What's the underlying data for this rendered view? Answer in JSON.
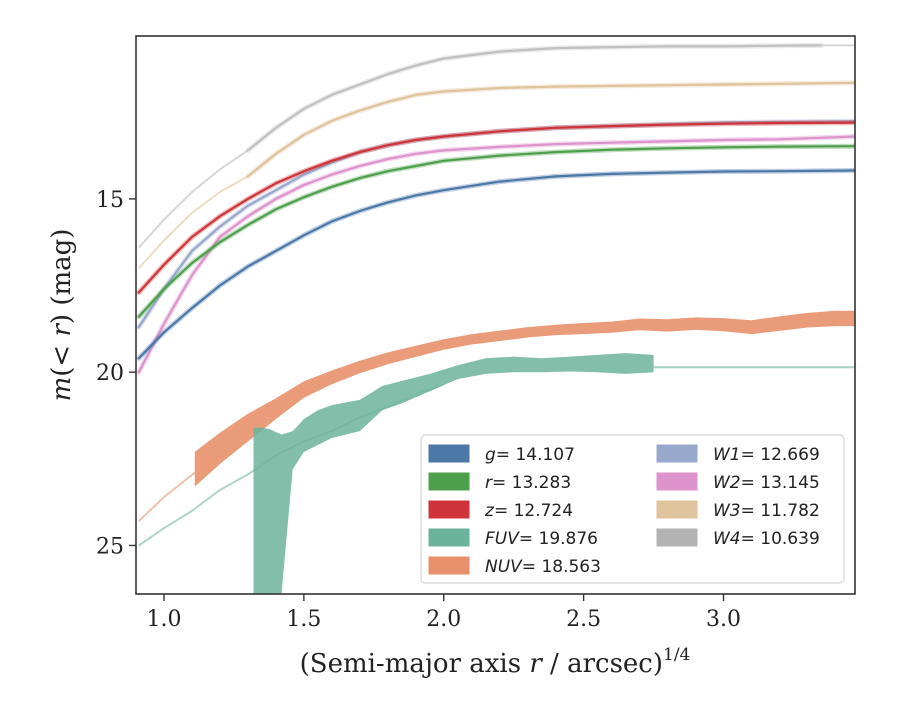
{
  "chart_data": {
    "type": "line",
    "xlabel": "(Semi-major axis r / arcsec)^1/4",
    "xlabel_parts": {
      "lead": "(Semi-major axis ",
      "var": "r",
      "mid": " / arcsec)",
      "sup": "1/4"
    },
    "ylabel": "m(< r) (mag)",
    "ylabel_parts": {
      "var": "m",
      "mid": "(< ",
      "var2": "r",
      "tail": ") (mag)"
    },
    "xlim": [
      0.9,
      3.47
    ],
    "ylim": [
      26.4,
      10.3
    ],
    "y_inverted": true,
    "xticks": [
      1.0,
      1.5,
      2.0,
      2.5,
      3.0
    ],
    "xtick_labels": [
      "1.0",
      "1.5",
      "2.0",
      "2.5",
      "3.0"
    ],
    "yticks": [
      15,
      20,
      25
    ],
    "ytick_labels": [
      "15",
      "20",
      "25"
    ],
    "grid": false,
    "legend_position": "lower-right",
    "legend": [
      {
        "key": "g",
        "label_var": "g",
        "label_value": "= 14.107",
        "color": "#4c78a8",
        "column": 0
      },
      {
        "key": "r",
        "label_var": "r",
        "label_value": "= 13.283",
        "color": "#4e9f4b",
        "column": 0
      },
      {
        "key": "z",
        "label_var": "z",
        "label_value": "= 12.724",
        "color": "#cf343a",
        "column": 0
      },
      {
        "key": "FUV",
        "label_var": "FUV",
        "label_value": "= 19.876",
        "color": "#6cb39b",
        "column": 0
      },
      {
        "key": "NUV",
        "label_var": "NUV",
        "label_value": "= 18.563",
        "color": "#e8906b",
        "column": 0
      },
      {
        "key": "W1",
        "label_var": "W1",
        "label_value": "= 12.669",
        "color": "#98a8cc",
        "column": 1
      },
      {
        "key": "W2",
        "label_var": "W2",
        "label_value": "= 13.145",
        "color": "#dd93cb",
        "column": 1
      },
      {
        "key": "W3",
        "label_var": "W3",
        "label_value": "= 11.782",
        "color": "#dfc39c",
        "column": 1
      },
      {
        "key": "W4",
        "label_var": "W4",
        "label_value": "= 10.639",
        "color": "#b3b3b3",
        "column": 1
      }
    ],
    "series": [
      {
        "key": "W4",
        "color": "#c0c0c0",
        "width": 0.8,
        "ext_color": "#d6d6d6",
        "x": [
          1.3,
          1.4,
          1.5,
          1.6,
          1.7,
          1.8,
          1.9,
          2.0,
          2.2,
          2.4,
          2.6,
          2.8,
          3.0,
          3.2,
          3.35
        ],
        "y": [
          13.6,
          12.95,
          12.4,
          12.0,
          11.7,
          11.4,
          11.15,
          10.95,
          10.75,
          10.65,
          10.62,
          10.6,
          10.6,
          10.58,
          10.57
        ],
        "ext_x": [
          0.91,
          1.0,
          1.1,
          1.2,
          1.3
        ],
        "ext_y": [
          16.4,
          15.6,
          14.8,
          14.15,
          13.6
        ],
        "tail_x": [
          3.35,
          3.47
        ],
        "tail_y": [
          10.57,
          10.57
        ]
      },
      {
        "key": "W3",
        "color": "#dfc39c",
        "width": 0.7,
        "ext_color": "#ecdcc2",
        "x": [
          1.3,
          1.4,
          1.5,
          1.6,
          1.7,
          1.8,
          1.9,
          2.0,
          2.2,
          2.4,
          2.6,
          2.8,
          3.0,
          3.2,
          3.47
        ],
        "y": [
          14.35,
          13.7,
          13.15,
          12.75,
          12.45,
          12.2,
          12.0,
          11.9,
          11.8,
          11.76,
          11.74,
          11.72,
          11.7,
          11.68,
          11.65
        ],
        "ext_x": [
          0.91,
          1.0,
          1.1,
          1.2,
          1.3
        ],
        "ext_y": [
          17.0,
          16.2,
          15.4,
          14.8,
          14.35
        ]
      },
      {
        "key": "W1",
        "color": "#98a8cc",
        "width": 0.6,
        "x": [
          0.91,
          1.0,
          1.1,
          1.2,
          1.3,
          1.4,
          1.5,
          1.6,
          1.7,
          1.8,
          1.9,
          2.0,
          2.2,
          2.4,
          2.6,
          2.8,
          3.0,
          3.2,
          3.47
        ],
        "y": [
          18.7,
          17.6,
          16.5,
          15.8,
          15.2,
          14.75,
          14.3,
          13.95,
          13.65,
          13.45,
          13.3,
          13.2,
          13.05,
          12.95,
          12.9,
          12.85,
          12.8,
          12.78,
          12.76
        ]
      },
      {
        "key": "z",
        "color": "#cf343a",
        "width": 0.45,
        "x": [
          0.91,
          1.0,
          1.1,
          1.2,
          1.3,
          1.4,
          1.5,
          1.6,
          1.7,
          1.8,
          1.9,
          2.0,
          2.2,
          2.4,
          2.6,
          2.8,
          3.0,
          3.2,
          3.47
        ],
        "y": [
          17.7,
          16.9,
          16.1,
          15.5,
          15.0,
          14.55,
          14.2,
          13.9,
          13.65,
          13.45,
          13.3,
          13.2,
          13.05,
          12.95,
          12.9,
          12.86,
          12.83,
          12.81,
          12.8
        ]
      },
      {
        "key": "W2",
        "color": "#dd93cb",
        "width": 0.55,
        "x": [
          0.91,
          1.0,
          1.1,
          1.2,
          1.3,
          1.4,
          1.5,
          1.6,
          1.7,
          1.8,
          1.9,
          2.0,
          2.2,
          2.4,
          2.6,
          2.8,
          3.0,
          3.2,
          3.47
        ],
        "y": [
          20.0,
          18.6,
          17.2,
          16.1,
          15.5,
          15.0,
          14.6,
          14.3,
          14.05,
          13.85,
          13.7,
          13.6,
          13.5,
          13.42,
          13.38,
          13.34,
          13.3,
          13.28,
          13.2
        ]
      },
      {
        "key": "r",
        "color": "#4e9f4b",
        "width": 0.45,
        "x": [
          0.91,
          1.0,
          1.1,
          1.2,
          1.3,
          1.4,
          1.5,
          1.6,
          1.7,
          1.8,
          1.9,
          2.0,
          2.2,
          2.4,
          2.6,
          2.8,
          3.0,
          3.2,
          3.47
        ],
        "y": [
          18.4,
          17.6,
          16.85,
          16.25,
          15.75,
          15.3,
          14.95,
          14.65,
          14.4,
          14.2,
          14.05,
          13.9,
          13.75,
          13.65,
          13.58,
          13.54,
          13.51,
          13.49,
          13.48
        ]
      },
      {
        "key": "g",
        "color": "#4c78a8",
        "width": 0.45,
        "x": [
          0.91,
          1.0,
          1.1,
          1.2,
          1.3,
          1.4,
          1.5,
          1.6,
          1.7,
          1.8,
          1.9,
          2.0,
          2.2,
          2.4,
          2.6,
          2.8,
          3.0,
          3.2,
          3.47
        ],
        "y": [
          19.6,
          18.85,
          18.15,
          17.5,
          16.95,
          16.5,
          16.05,
          15.65,
          15.35,
          15.1,
          14.9,
          14.75,
          14.5,
          14.35,
          14.28,
          14.24,
          14.21,
          14.2,
          14.18
        ]
      },
      {
        "key": "NUV",
        "color": "#e8906b",
        "width": 0,
        "x": [
          1.11,
          1.2,
          1.3,
          1.4,
          1.5,
          1.6,
          1.7,
          1.8,
          1.9,
          2.0,
          2.1,
          2.2,
          2.3,
          2.4,
          2.5,
          2.6,
          2.7,
          2.8,
          2.9,
          3.0,
          3.1,
          3.2,
          3.3,
          3.4,
          3.47
        ],
        "y": [
          22.8,
          22.2,
          21.6,
          21.05,
          20.5,
          20.15,
          19.85,
          19.6,
          19.4,
          19.2,
          19.05,
          18.95,
          18.85,
          18.78,
          18.74,
          18.7,
          18.62,
          18.65,
          18.6,
          18.63,
          18.7,
          18.6,
          18.5,
          18.45,
          18.45
        ],
        "yerr": [
          0.5,
          0.45,
          0.4,
          0.3,
          0.24,
          0.2,
          0.18,
          0.17,
          0.16,
          0.15,
          0.15,
          0.15,
          0.15,
          0.15,
          0.16,
          0.16,
          0.17,
          0.18,
          0.18,
          0.19,
          0.2,
          0.21,
          0.21,
          0.22,
          0.22
        ],
        "ext_x": [
          0.91,
          1.0,
          1.11
        ],
        "ext_y": [
          24.3,
          23.6,
          22.9
        ]
      },
      {
        "key": "FUV",
        "color": "#6cb39b",
        "width": 0,
        "x": [
          1.32,
          1.35,
          1.38,
          1.42,
          1.46,
          1.5,
          1.55,
          1.6,
          1.7,
          1.78,
          1.85,
          1.95,
          2.05,
          2.15,
          2.25,
          2.35,
          2.45,
          2.55,
          2.65,
          2.75
        ],
        "y_upper": [
          21.6,
          21.6,
          21.65,
          21.8,
          21.7,
          21.35,
          21.1,
          20.95,
          20.8,
          20.4,
          20.25,
          20.05,
          19.8,
          19.6,
          19.55,
          19.6,
          19.55,
          19.5,
          19.45,
          19.5
        ],
        "y_lower": [
          26.4,
          26.4,
          26.4,
          26.4,
          22.8,
          22.3,
          22.1,
          21.9,
          21.7,
          21.1,
          20.9,
          20.55,
          20.2,
          20.05,
          20.0,
          20.0,
          19.98,
          20.0,
          20.05,
          20.0
        ],
        "ext_x": [
          0.91,
          1.0,
          1.1,
          1.2,
          1.3,
          1.4,
          1.5,
          1.6,
          1.7,
          1.8,
          1.9,
          2.0
        ],
        "ext_y": [
          25.0,
          24.5,
          24.0,
          23.4,
          22.95,
          22.4,
          22.0,
          21.7,
          21.3,
          21.0,
          20.65,
          20.35
        ],
        "tail_x": [
          2.75,
          3.47
        ],
        "tail_y": [
          19.86,
          19.86
        ]
      }
    ]
  }
}
